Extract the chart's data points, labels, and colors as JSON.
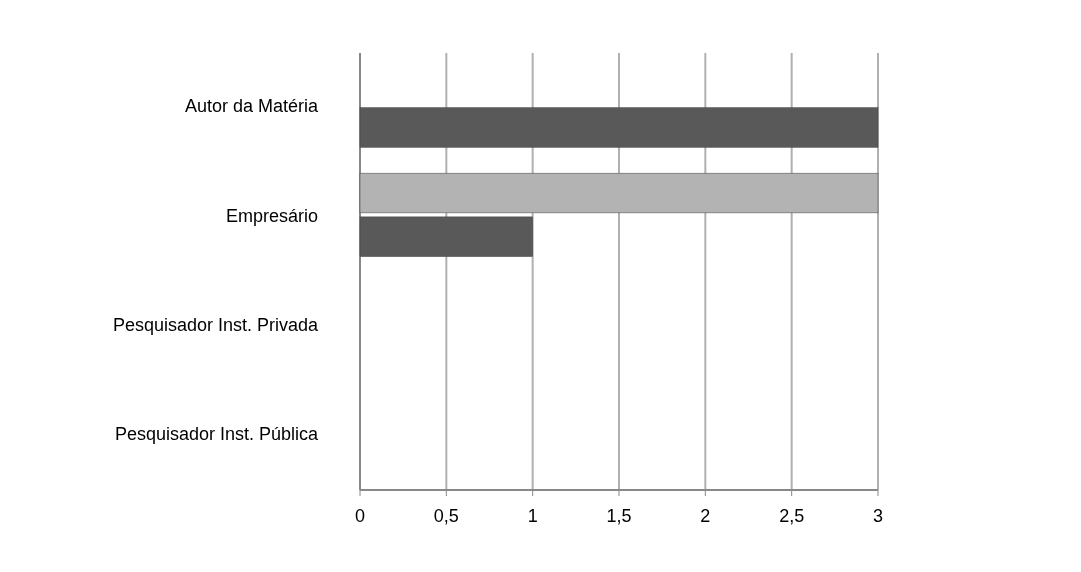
{
  "chart_data": {
    "type": "bar",
    "orientation": "horizontal",
    "categories": [
      "Autor da Matéria",
      "Empresário",
      "Pesquisador Inst.  Privada",
      "Pesquisador Inst.  Pública"
    ],
    "series": [
      {
        "color": "#b3b3b3",
        "values": [
          0,
          3,
          0,
          0
        ]
      },
      {
        "color": "#595959",
        "values": [
          3,
          1,
          0,
          0
        ]
      }
    ],
    "xlim": [
      0,
      3
    ],
    "xticks": [
      0,
      {
        "value": 0.5,
        "label": "0,5"
      },
      1,
      {
        "value": 1.5,
        "label": "1,5"
      },
      2,
      {
        "value": 2.5,
        "label": "2,5"
      },
      3
    ],
    "grid": "x"
  }
}
